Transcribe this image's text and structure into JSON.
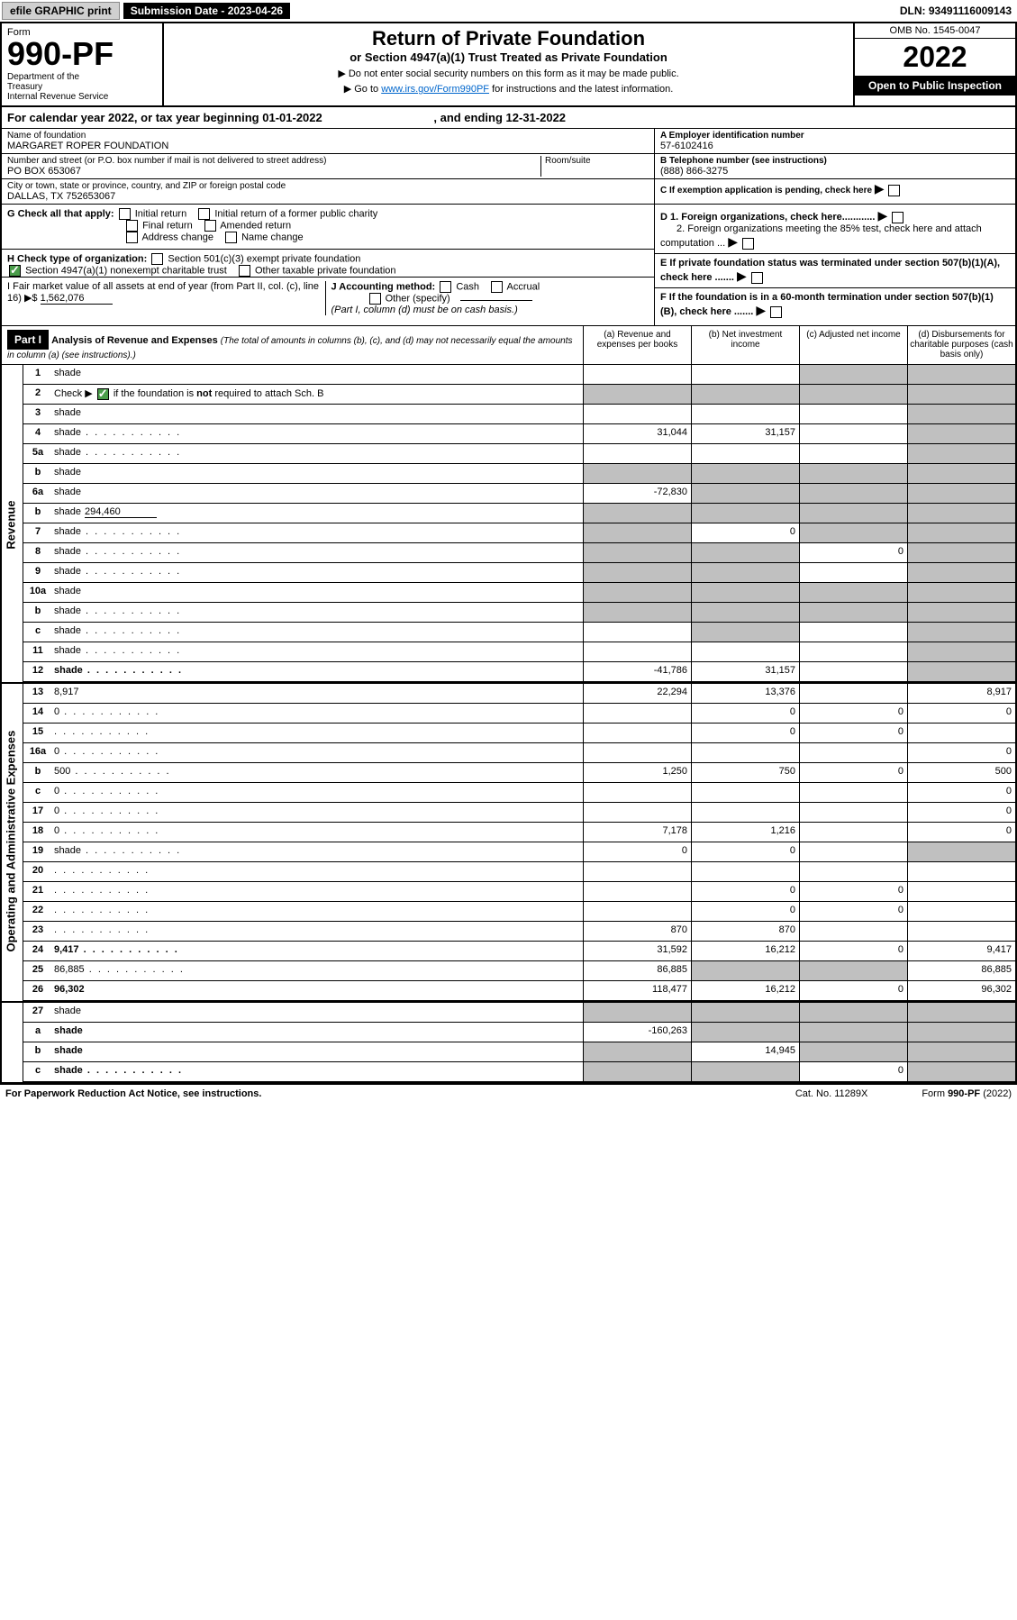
{
  "top": {
    "efile": "efile GRAPHIC print",
    "submission": "Submission Date - 2023-04-26",
    "dln": "DLN: 93491116009143"
  },
  "header": {
    "form_label": "Form",
    "form_num": "990-PF",
    "dept": "Department of the Treasury\nInternal Revenue Service",
    "title": "Return of Private Foundation",
    "subtitle": "or Section 4947(a)(1) Trust Treated as Private Foundation",
    "instr1": "▶ Do not enter social security numbers on this form as it may be made public.",
    "instr2": "▶ Go to www.irs.gov/Form990PF for instructions and the latest information.",
    "link": "www.irs.gov/Form990PF",
    "omb": "OMB No. 1545-0047",
    "year": "2022",
    "open_pub": "Open to Public Inspection"
  },
  "cal_year": {
    "prefix": "For calendar year 2022, or tax year beginning ",
    "begin": "01-01-2022",
    "mid": " , and ending ",
    "end": "12-31-2022"
  },
  "info": {
    "name_label": "Name of foundation",
    "name": "MARGARET ROPER FOUNDATION",
    "addr_label": "Number and street (or P.O. box number if mail is not delivered to street address)",
    "addr": "PO BOX 653067",
    "room_label": "Room/suite",
    "city_label": "City or town, state or province, country, and ZIP or foreign postal code",
    "city": "DALLAS, TX  752653067",
    "a_label": "A Employer identification number",
    "a_val": "57-6102416",
    "b_label": "B Telephone number (see instructions)",
    "b_val": "(888) 866-3275",
    "c_label": "C If exemption application is pending, check here",
    "d1_label": "D 1. Foreign organizations, check here............",
    "d2_label": "2. Foreign organizations meeting the 85% test, check here and attach computation ...",
    "e_label": "E If private foundation status was terminated under section 507(b)(1)(A), check here .......",
    "f_label": "F If the foundation is in a 60-month termination under section 507(b)(1)(B), check here .......",
    "g_label": "G Check all that apply:",
    "g_opts": [
      "Initial return",
      "Initial return of a former public charity",
      "Final return",
      "Amended return",
      "Address change",
      "Name change"
    ],
    "h_label": "H Check type of organization:",
    "h_opts": [
      "Section 501(c)(3) exempt private foundation",
      "Section 4947(a)(1) nonexempt charitable trust",
      "Other taxable private foundation"
    ],
    "i_label": "I Fair market value of all assets at end of year (from Part II, col. (c), line 16) ▶$",
    "i_val": "1,562,076",
    "j_label": "J Accounting method:",
    "j_opts": [
      "Cash",
      "Accrual",
      "Other (specify)"
    ],
    "j_note": "(Part I, column (d) must be on cash basis.)"
  },
  "part1": {
    "label": "Part I",
    "title": "Analysis of Revenue and Expenses",
    "note": "(The total of amounts in columns (b), (c), and (d) may not necessarily equal the amounts in column (a) (see instructions).)",
    "cols": {
      "a": "(a) Revenue and expenses per books",
      "b": "(b) Net investment income",
      "c": "(c) Adjusted net income",
      "d": "(d) Disbursements for charitable purposes (cash basis only)"
    }
  },
  "sections": {
    "revenue": "Revenue",
    "expenses": "Operating and Administrative Expenses"
  },
  "lines": [
    {
      "n": "1",
      "d": "shade",
      "a": "",
      "b": "",
      "c": "shade"
    },
    {
      "n": "2",
      "d": "shade",
      "bold_parts": true,
      "a": "shade",
      "b": "shade",
      "c": "shade"
    },
    {
      "n": "3",
      "d": "shade",
      "a": "",
      "b": "",
      "c": ""
    },
    {
      "n": "4",
      "d": "shade",
      "dots": true,
      "a": "31,044",
      "b": "31,157",
      "c": ""
    },
    {
      "n": "5a",
      "d": "shade",
      "dots": true,
      "a": "",
      "b": "",
      "c": ""
    },
    {
      "n": "b",
      "d": "shade",
      "a": "shade",
      "b": "shade",
      "c": "shade"
    },
    {
      "n": "6a",
      "d": "shade",
      "a": "-72,830",
      "b": "shade",
      "c": "shade"
    },
    {
      "n": "b",
      "d": "shade",
      "inline_val": "294,460",
      "a": "shade",
      "b": "shade",
      "c": "shade"
    },
    {
      "n": "7",
      "d": "shade",
      "dots": true,
      "a": "shade",
      "b": "0",
      "c": "shade"
    },
    {
      "n": "8",
      "d": "shade",
      "dots": true,
      "a": "shade",
      "b": "shade",
      "c": "0"
    },
    {
      "n": "9",
      "d": "shade",
      "dots": true,
      "a": "shade",
      "b": "shade",
      "c": ""
    },
    {
      "n": "10a",
      "d": "shade",
      "a": "shade",
      "b": "shade",
      "c": "shade"
    },
    {
      "n": "b",
      "d": "shade",
      "dots": true,
      "a": "shade",
      "b": "shade",
      "c": "shade"
    },
    {
      "n": "c",
      "d": "shade",
      "dots": true,
      "a": "",
      "b": "shade",
      "c": ""
    },
    {
      "n": "11",
      "d": "shade",
      "dots": true,
      "a": "",
      "b": "",
      "c": ""
    },
    {
      "n": "12",
      "d": "shade",
      "bold": true,
      "dots": true,
      "a": "-41,786",
      "b": "31,157",
      "c": ""
    }
  ],
  "exp_lines": [
    {
      "n": "13",
      "d": "8,917",
      "a": "22,294",
      "b": "13,376",
      "c": ""
    },
    {
      "n": "14",
      "d": "0",
      "dots": true,
      "a": "",
      "b": "0",
      "c": "0"
    },
    {
      "n": "15",
      "d": "",
      "dots": true,
      "a": "",
      "b": "0",
      "c": "0"
    },
    {
      "n": "16a",
      "d": "0",
      "dots": true,
      "a": "",
      "b": "",
      "c": ""
    },
    {
      "n": "b",
      "d": "500",
      "dots": true,
      "a": "1,250",
      "b": "750",
      "c": "0"
    },
    {
      "n": "c",
      "d": "0",
      "dots": true,
      "a": "",
      "b": "",
      "c": ""
    },
    {
      "n": "17",
      "d": "0",
      "dots": true,
      "a": "",
      "b": "",
      "c": ""
    },
    {
      "n": "18",
      "d": "0",
      "dots": true,
      "a": "7,178",
      "b": "1,216",
      "c": ""
    },
    {
      "n": "19",
      "d": "shade",
      "dots": true,
      "a": "0",
      "b": "0",
      "c": ""
    },
    {
      "n": "20",
      "d": "",
      "dots": true,
      "a": "",
      "b": "",
      "c": ""
    },
    {
      "n": "21",
      "d": "",
      "dots": true,
      "a": "",
      "b": "0",
      "c": "0"
    },
    {
      "n": "22",
      "d": "",
      "dots": true,
      "a": "",
      "b": "0",
      "c": "0"
    },
    {
      "n": "23",
      "d": "",
      "dots": true,
      "a": "870",
      "b": "870",
      "c": ""
    },
    {
      "n": "24",
      "d": "9,417",
      "bold": true,
      "dots": true,
      "a": "31,592",
      "b": "16,212",
      "c": "0"
    },
    {
      "n": "25",
      "d": "86,885",
      "dots": true,
      "a": "86,885",
      "b": "shade",
      "c": "shade"
    },
    {
      "n": "26",
      "d": "96,302",
      "bold": true,
      "a": "118,477",
      "b": "16,212",
      "c": "0"
    }
  ],
  "bottom_lines": [
    {
      "n": "27",
      "d": "shade",
      "a": "shade",
      "b": "shade",
      "c": "shade"
    },
    {
      "n": "a",
      "d": "shade",
      "bold": true,
      "a": "-160,263",
      "b": "shade",
      "c": "shade"
    },
    {
      "n": "b",
      "d": "shade",
      "bold": true,
      "a": "shade",
      "b": "14,945",
      "c": "shade"
    },
    {
      "n": "c",
      "d": "shade",
      "bold": true,
      "dots": true,
      "a": "shade",
      "b": "shade",
      "c": "0"
    }
  ],
  "footer": {
    "left": "For Paperwork Reduction Act Notice, see instructions.",
    "mid": "Cat. No. 11289X",
    "right": "Form 990-PF (2022)"
  },
  "colors": {
    "shade": "#c0c0c0",
    "check_green": "#4a9d4a",
    "link": "#0066cc"
  }
}
